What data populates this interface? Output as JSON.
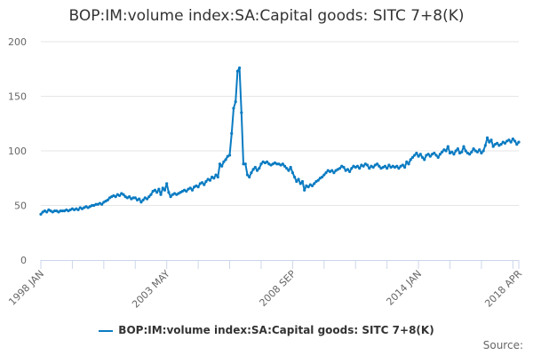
{
  "chart_data": {
    "type": "line",
    "title": "BOP:IM:volume index:SA:Capital goods: SITC 7+8(K)",
    "xlabel": "",
    "ylabel": "",
    "ylim": [
      0,
      200
    ],
    "yticks": [
      0,
      50,
      100,
      150,
      200
    ],
    "x_start": "1998 JAN",
    "x_end": "2018 APR",
    "frequency": "monthly",
    "xtick_labels": [
      "1998 JAN",
      "2003 MAY",
      "2008 SEP",
      "2014 JAN",
      "2018 APR"
    ],
    "grid": "horizontal",
    "legend": "bottom",
    "series": [
      {
        "name": "BOP:IM:volume index:SA:Capital goods: SITC 7+8(K)",
        "color": "#0a7bc2",
        "values": [
          42,
          44,
          45,
          44,
          46,
          45,
          44,
          45,
          45,
          44,
          45,
          45,
          45,
          46,
          45,
          46,
          47,
          46,
          47,
          46,
          48,
          47,
          48,
          49,
          48,
          49,
          50,
          50,
          51,
          51,
          52,
          51,
          53,
          54,
          55,
          57,
          58,
          59,
          58,
          60,
          59,
          61,
          60,
          58,
          57,
          58,
          56,
          57,
          57,
          55,
          56,
          53,
          55,
          57,
          56,
          58,
          60,
          63,
          64,
          62,
          65,
          60,
          66,
          64,
          70,
          62,
          58,
          60,
          61,
          60,
          61,
          62,
          63,
          64,
          63,
          65,
          66,
          64,
          67,
          68,
          67,
          70,
          71,
          69,
          72,
          74,
          73,
          76,
          75,
          78,
          76,
          88,
          86,
          90,
          92,
          95,
          96,
          116,
          139,
          145,
          173,
          176,
          135,
          88,
          88,
          78,
          76,
          80,
          83,
          85,
          82,
          84,
          88,
          90,
          89,
          90,
          88,
          87,
          88,
          89,
          88,
          88,
          87,
          88,
          86,
          84,
          82,
          85,
          80,
          76,
          72,
          74,
          70,
          72,
          64,
          68,
          67,
          69,
          68,
          70,
          72,
          73,
          75,
          76,
          78,
          80,
          82,
          81,
          82,
          80,
          82,
          83,
          84,
          86,
          85,
          82,
          83,
          81,
          84,
          86,
          85,
          86,
          84,
          87,
          86,
          88,
          87,
          84,
          86,
          85,
          87,
          88,
          86,
          84,
          85,
          86,
          84,
          87,
          85,
          86,
          85,
          86,
          84,
          86,
          87,
          85,
          90,
          88,
          92,
          94,
          96,
          98,
          95,
          97,
          94,
          92,
          96,
          97,
          95,
          97,
          98,
          96,
          94,
          97,
          99,
          101,
          100,
          104,
          98,
          99,
          97,
          100,
          102,
          98,
          99,
          104,
          100,
          98,
          97,
          99,
          102,
          100,
          99,
          101,
          98,
          100,
          105,
          112,
          108,
          110,
          104,
          106,
          107,
          105,
          106,
          108,
          107,
          109,
          110,
          108,
          111,
          109,
          106,
          108
        ]
      }
    ],
    "source_label": "Source:"
  }
}
